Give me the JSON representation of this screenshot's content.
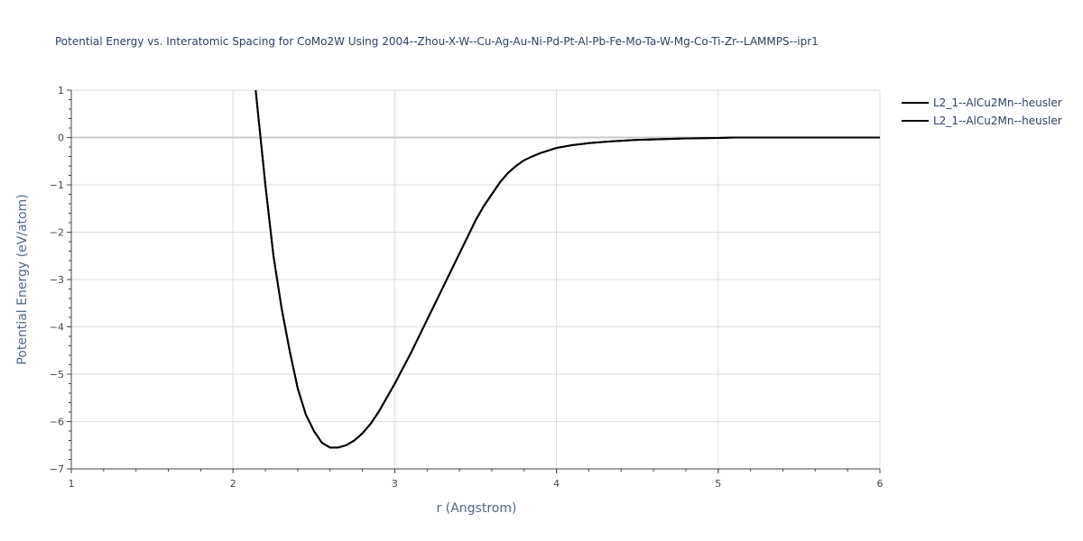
{
  "chart_data": {
    "type": "line",
    "title": "Potential Energy vs. Interatomic Spacing for CoMo2W Using 2004--Zhou-X-W--Cu-Ag-Au-Ni-Pd-Pt-Al-Pb-Fe-Mo-Ta-W-Mg-Co-Ti-Zr--LAMMPS--ipr1",
    "xlabel": "r (Angstrom)",
    "ylabel": "Potential Energy (eV/atom)",
    "xlim": [
      1,
      6
    ],
    "ylim": [
      -7,
      1
    ],
    "x_ticks": [
      "1",
      "2",
      "3",
      "4",
      "5",
      "6"
    ],
    "y_ticks": [
      "1",
      "0",
      "−1",
      "−2",
      "−3",
      "−4",
      "−5",
      "−6",
      "−7"
    ],
    "grid": true,
    "legend_position": "top-right",
    "series": [
      {
        "name": "L2_1--AlCu2Mn--heusler",
        "color": "#000000",
        "x": [
          2.14,
          2.2,
          2.25,
          2.3,
          2.35,
          2.4,
          2.45,
          2.5,
          2.55,
          2.6,
          2.65,
          2.7,
          2.75,
          2.8,
          2.85,
          2.9,
          2.95,
          3.0,
          3.1,
          3.2,
          3.3,
          3.4,
          3.5,
          3.55,
          3.6,
          3.65,
          3.7,
          3.75,
          3.8,
          3.85,
          3.9,
          4.0,
          4.1,
          4.2,
          4.3,
          4.4,
          4.5,
          4.6,
          4.8,
          5.0,
          5.1,
          5.5,
          6.0
        ],
        "y": [
          1.0,
          -1.0,
          -2.5,
          -3.6,
          -4.5,
          -5.3,
          -5.85,
          -6.2,
          -6.45,
          -6.55,
          -6.55,
          -6.5,
          -6.4,
          -6.25,
          -6.05,
          -5.8,
          -5.5,
          -5.2,
          -4.55,
          -3.85,
          -3.15,
          -2.45,
          -1.75,
          -1.45,
          -1.2,
          -0.95,
          -0.75,
          -0.6,
          -0.48,
          -0.4,
          -0.33,
          -0.22,
          -0.16,
          -0.12,
          -0.09,
          -0.07,
          -0.05,
          -0.04,
          -0.02,
          -0.01,
          0.0,
          0.0,
          0.0
        ]
      },
      {
        "name": "L2_1--AlCu2Mn--heusler",
        "color": "#000000",
        "x": [
          2.14,
          2.2,
          2.25,
          2.3,
          2.35,
          2.4,
          2.45,
          2.5,
          2.55,
          2.6,
          2.65,
          2.7,
          2.75,
          2.8,
          2.85,
          2.9,
          2.95,
          3.0,
          3.1,
          3.2,
          3.3,
          3.4,
          3.5,
          3.55,
          3.6,
          3.65,
          3.7,
          3.75,
          3.8,
          3.85,
          3.9,
          4.0,
          4.1,
          4.2,
          4.3,
          4.4,
          4.5,
          4.6,
          4.8,
          5.0,
          5.1,
          5.5,
          6.0
        ],
        "y": [
          1.0,
          -1.0,
          -2.5,
          -3.6,
          -4.5,
          -5.3,
          -5.85,
          -6.2,
          -6.45,
          -6.55,
          -6.55,
          -6.5,
          -6.4,
          -6.25,
          -6.05,
          -5.8,
          -5.5,
          -5.2,
          -4.55,
          -3.85,
          -3.15,
          -2.45,
          -1.75,
          -1.45,
          -1.2,
          -0.95,
          -0.75,
          -0.6,
          -0.48,
          -0.4,
          -0.33,
          -0.22,
          -0.16,
          -0.12,
          -0.09,
          -0.07,
          -0.05,
          -0.04,
          -0.02,
          -0.01,
          0.0,
          0.0,
          0.0
        ]
      }
    ]
  }
}
